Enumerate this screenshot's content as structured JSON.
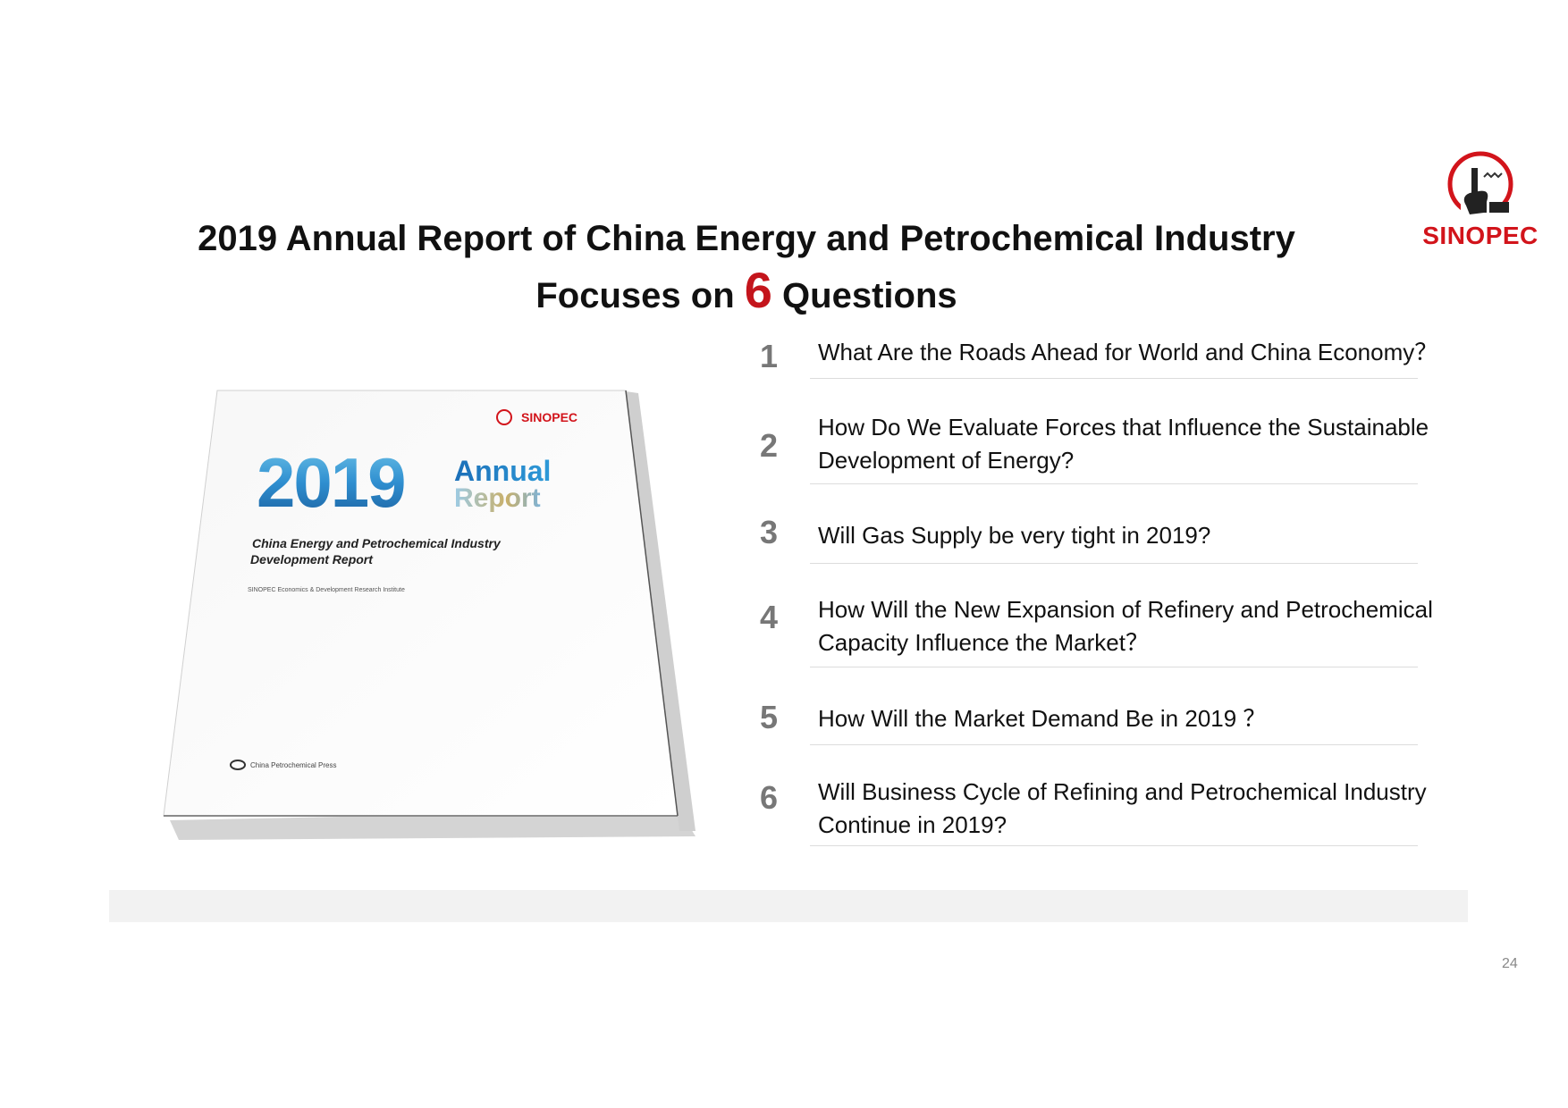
{
  "slide": {
    "title_line1": "2019 Annual Report of China Energy and Petrochemical Industry",
    "title_line2_prefix": "Focuses on ",
    "title_line2_number": "6",
    "title_line2_suffix": " Questions",
    "page_number": "24"
  },
  "logo": {
    "text": "SINOPEC",
    "color": "#d2141b"
  },
  "book": {
    "brand": "SINOPEC",
    "year": "2019",
    "word1": "Annual",
    "word2": "Report",
    "subtitle_line1": "China Energy and Petrochemical Industry",
    "subtitle_line2": "Development Report",
    "institute": "SINOPEC Economics & Development Research Institute",
    "publisher": "China Petrochemical Press"
  },
  "questions": [
    {
      "number": "1",
      "line1": "What Are the Roads Ahead for World and China Economy？",
      "line2": ""
    },
    {
      "number": "2",
      "line1": "How Do We Evaluate Forces that Influence the Sustainable",
      "line2": "Development of Energy?"
    },
    {
      "number": "3",
      "line1": "Will Gas Supply be very tight in 2019?",
      "line2": ""
    },
    {
      "number": "4",
      "line1": "How Will the New Expansion of Refinery and Petrochemical",
      "line2": "Capacity Influence the Market？"
    },
    {
      "number": "5",
      "line1": "How Will the Market Demand Be in 2019 ？",
      "line2": ""
    },
    {
      "number": "6",
      "line1": "Will Business Cycle of Refining and Petrochemical Industry",
      "line2": "Continue in 2019?"
    }
  ],
  "colors": {
    "accent_red": "#c4151c",
    "number_gray": "#777777",
    "separator": "#dcdcdc"
  }
}
